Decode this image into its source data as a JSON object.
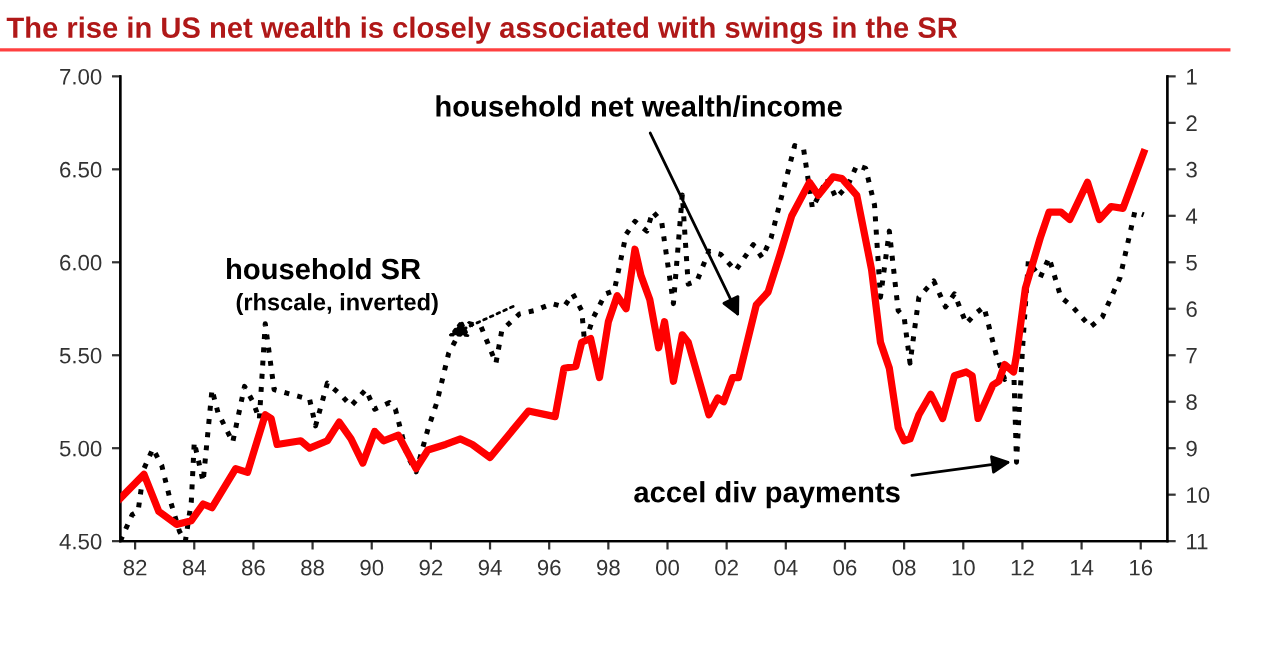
{
  "chart_data": {
    "type": "line",
    "title": "The rise in US net wealth is closely associated with swings in the SR",
    "xlim": [
      1981.5,
      2016.9
    ],
    "xticks": [
      {
        "value": 1982,
        "label": "82"
      },
      {
        "value": 1984,
        "label": "84"
      },
      {
        "value": 1986,
        "label": "86"
      },
      {
        "value": 1988,
        "label": "88"
      },
      {
        "value": 1990,
        "label": "90"
      },
      {
        "value": 1992,
        "label": "92"
      },
      {
        "value": 1994,
        "label": "94"
      },
      {
        "value": 1996,
        "label": "96"
      },
      {
        "value": 1998,
        "label": "98"
      },
      {
        "value": 2000,
        "label": "00"
      },
      {
        "value": 2002,
        "label": "02"
      },
      {
        "value": 2004,
        "label": "04"
      },
      {
        "value": 2006,
        "label": "06"
      },
      {
        "value": 2008,
        "label": "08"
      },
      {
        "value": 2010,
        "label": "10"
      },
      {
        "value": 2012,
        "label": "12"
      },
      {
        "value": 2014,
        "label": "14"
      },
      {
        "value": 2016,
        "label": "16"
      }
    ],
    "ylim": [
      4.5,
      7.0
    ],
    "yticks": [
      {
        "value": 4.5,
        "label": "4.50"
      },
      {
        "value": 5.0,
        "label": "5.00"
      },
      {
        "value": 5.5,
        "label": "5.50"
      },
      {
        "value": 6.0,
        "label": "6.00"
      },
      {
        "value": 6.5,
        "label": "6.50"
      },
      {
        "value": 7.0,
        "label": "7.00"
      }
    ],
    "y2lim": [
      11,
      1
    ],
    "y2ticks": [
      1,
      2,
      3,
      4,
      5,
      6,
      7,
      8,
      9,
      10,
      11
    ],
    "grid": false,
    "series": [
      {
        "color": "#ff0000",
        "line_style": "solid",
        "x": [
          1981.5,
          1982.3,
          1982.8,
          1983.4,
          1983.9,
          1984.3,
          1984.6,
          1985.4,
          1985.8,
          1986.4,
          1986.6,
          1986.8,
          1987.6,
          1987.9,
          1988.5,
          1988.9,
          1989.3,
          1989.7,
          1990.1,
          1990.4,
          1990.9,
          1991.5,
          1991.9,
          1992.5,
          1993.0,
          1993.4,
          1994.0,
          1995.3,
          1996.2,
          1996.5,
          1996.9,
          1997.1,
          1997.4,
          1997.7,
          1998.0,
          1998.3,
          1998.6,
          1998.9,
          1999.1,
          1999.4,
          1999.7,
          1999.9,
          2000.2,
          2000.5,
          2000.7,
          2001.4,
          2001.7,
          2001.9,
          2002.2,
          2002.4,
          2003.0,
          2003.4,
          2003.8,
          2004.2,
          2004.8,
          2005.1,
          2005.6,
          2005.9,
          2006.4,
          2006.9,
          2007.2,
          2007.5,
          2007.8,
          2008.0,
          2008.2,
          2008.5,
          2008.9,
          2009.3,
          2009.7,
          2010.1,
          2010.3,
          2010.5,
          2011.0,
          2011.2,
          2011.4,
          2011.7,
          2011.8,
          2012.1,
          2012.6,
          2012.9,
          2013.3,
          2013.6,
          2014.2,
          2014.6,
          2015.0,
          2015.4,
          2016.1
        ],
        "values": [
          4.73,
          4.86,
          4.66,
          4.59,
          4.61,
          4.7,
          4.68,
          4.89,
          4.87,
          5.18,
          5.16,
          5.02,
          5.04,
          5.0,
          5.04,
          5.14,
          5.05,
          4.92,
          5.09,
          5.04,
          5.07,
          4.89,
          4.99,
          5.02,
          5.05,
          5.02,
          4.95,
          5.2,
          5.17,
          5.43,
          5.44,
          5.57,
          5.59,
          5.38,
          5.68,
          5.82,
          5.75,
          6.07,
          5.93,
          5.8,
          5.54,
          5.68,
          5.36,
          5.61,
          5.57,
          5.18,
          5.27,
          5.25,
          5.38,
          5.38,
          5.77,
          5.84,
          6.04,
          6.25,
          6.43,
          6.36,
          6.46,
          6.45,
          6.36,
          5.96,
          5.57,
          5.43,
          5.11,
          5.04,
          5.05,
          5.18,
          5.29,
          5.16,
          5.39,
          5.41,
          5.39,
          5.16,
          5.34,
          5.36,
          5.45,
          5.41,
          5.5,
          5.86,
          6.13,
          6.27,
          6.27,
          6.23,
          6.43,
          6.23,
          6.3,
          6.29,
          6.59
        ]
      },
      {
        "color": "#000000",
        "line_style": "dotted",
        "axis": "y2",
        "x": [
          1981.5,
          1981.9,
          1982.1,
          1982.3,
          1982.6,
          1982.9,
          1983.2,
          1983.5,
          1983.7,
          1983.9,
          1984.0,
          1984.3,
          1984.6,
          1984.8,
          1985.3,
          1985.7,
          1986.0,
          1986.2,
          1986.4,
          1986.7,
          1987.1,
          1987.5,
          1987.9,
          1988.1,
          1988.5,
          1989.0,
          1989.3,
          1989.8,
          1990.1,
          1990.6,
          1990.8,
          1991.2,
          1991.5,
          1991.9,
          1992.2,
          1992.6,
          1992.9,
          1993.3,
          1993.7,
          1994.2,
          1994.4,
          1995.0,
          1995.5,
          1996.1,
          1996.5,
          1996.8,
          1997.1,
          1997.2,
          1997.5,
          1997.9,
          1998.2,
          1998.6,
          1998.9,
          1999.3,
          1999.5,
          1999.8,
          2000.2,
          2000.5,
          2000.7,
          2001.0,
          2001.4,
          2001.8,
          2002.3,
          2002.9,
          2003.2,
          2003.5,
          2003.9,
          2004.3,
          2004.6,
          2004.9,
          2005.4,
          2005.7,
          2006.1,
          2006.4,
          2006.7,
          2007.0,
          2007.2,
          2007.5,
          2007.8,
          2008.0,
          2008.2,
          2008.5,
          2009.0,
          2009.4,
          2009.7,
          2010.1,
          2010.4,
          2010.7,
          2011.1,
          2011.4,
          2011.7,
          2011.8,
          2012.0,
          2012.2,
          2012.6,
          2012.9,
          2013.3,
          2013.7,
          2014.3,
          2014.7,
          2015.3,
          2015.8,
          2016.1
        ],
        "values": [
          11.0,
          10.43,
          10.36,
          9.44,
          9.01,
          9.37,
          10.15,
          10.79,
          11.0,
          10.15,
          8.87,
          9.72,
          7.74,
          8.23,
          8.87,
          7.67,
          8.02,
          8.38,
          6.32,
          7.74,
          7.81,
          7.88,
          7.95,
          8.52,
          7.6,
          7.88,
          8.09,
          7.74,
          8.16,
          8.02,
          8.16,
          9.16,
          9.51,
          8.59,
          8.02,
          6.96,
          6.6,
          6.32,
          6.39,
          7.17,
          6.46,
          6.11,
          6.04,
          5.89,
          5.96,
          5.68,
          6.04,
          6.74,
          6.18,
          5.68,
          5.61,
          4.4,
          4.12,
          4.33,
          3.91,
          4.12,
          5.89,
          3.55,
          5.47,
          5.4,
          4.76,
          4.83,
          5.18,
          4.62,
          4.9,
          4.48,
          3.48,
          2.49,
          2.56,
          3.84,
          3.2,
          3.62,
          3.34,
          2.91,
          2.98,
          3.77,
          5.75,
          4.33,
          6.04,
          6.18,
          7.17,
          5.75,
          5.4,
          5.96,
          5.68,
          6.32,
          6.11,
          5.96,
          6.96,
          7.52,
          7.17,
          9.3,
          6.89,
          4.97,
          5.33,
          4.9,
          5.75,
          5.96,
          6.39,
          6.18,
          5.33,
          3.91,
          3.98
        ]
      }
    ],
    "annotations": [
      {
        "text": "household net wealth/income",
        "x": 2002.5,
        "y": 5.68
      },
      {
        "text": "household SR",
        "x": 1992.4,
        "y": 5.59
      },
      "(rhscale, inverted)",
      {
        "text": "accel div payments",
        "x": 2011.8,
        "y": 4.93
      }
    ]
  }
}
